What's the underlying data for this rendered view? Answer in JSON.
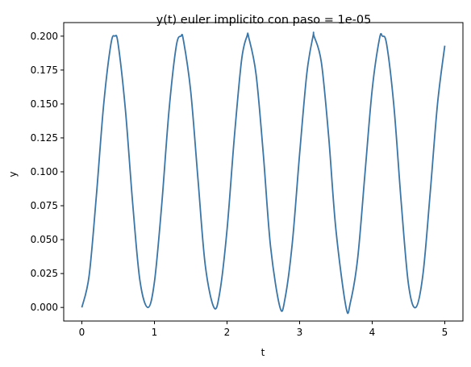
{
  "chart_data": {
    "type": "line",
    "title": "y(t) euler implicito con paso = 1e-05",
    "xlabel": "t",
    "ylabel": "y",
    "xlim": [
      -0.25,
      5.25
    ],
    "ylim": [
      -0.01,
      0.21
    ],
    "xticks": [
      "0",
      "1",
      "2",
      "3",
      "4",
      "5"
    ],
    "yticks": [
      "0.000",
      "0.025",
      "0.050",
      "0.075",
      "0.100",
      "0.125",
      "0.150",
      "0.175",
      "0.200"
    ],
    "grid": false,
    "legend": "none",
    "series": [
      {
        "color": "#3a75a8",
        "x": [
          0.0,
          0.1,
          0.2,
          0.3,
          0.4,
          0.455,
          0.5,
          0.6,
          0.7,
          0.8,
          0.91,
          1.0,
          1.1,
          1.2,
          1.3,
          1.365,
          1.4,
          1.5,
          1.6,
          1.7,
          1.82,
          1.9,
          2.0,
          2.1,
          2.2,
          2.275,
          2.3,
          2.4,
          2.5,
          2.6,
          2.73,
          2.8,
          2.9,
          3.0,
          3.1,
          3.185,
          3.2,
          3.3,
          3.4,
          3.5,
          3.64,
          3.7,
          3.8,
          3.9,
          4.0,
          4.1,
          4.14,
          4.2,
          4.3,
          4.4,
          4.5,
          4.6,
          4.7,
          4.8,
          4.9,
          5.0
        ],
        "y": [
          0.0,
          0.0234,
          0.0824,
          0.1493,
          0.1941,
          0.2,
          0.1941,
          0.1457,
          0.0768,
          0.0198,
          0.0,
          0.0189,
          0.0756,
          0.1448,
          0.1925,
          0.2,
          0.1968,
          0.1592,
          0.0944,
          0.0312,
          0.0,
          0.0111,
          0.0573,
          0.1251,
          0.1822,
          0.2,
          0.1988,
          0.1719,
          0.1129,
          0.0447,
          0.0,
          0.0069,
          0.0479,
          0.1132,
          0.1728,
          0.2,
          0.1998,
          0.1806,
          0.1261,
          0.0574,
          0.0,
          0.0038,
          0.0363,
          0.0985,
          0.1607,
          0.1981,
          0.2,
          0.1937,
          0.1478,
          0.0772,
          0.0169,
          0.0,
          0.0248,
          0.0852,
          0.1502,
          0.193
        ]
      }
    ]
  }
}
